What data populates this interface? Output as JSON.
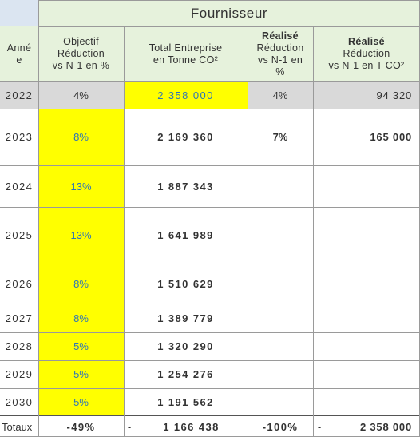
{
  "header": {
    "group_title": "Fournisseur",
    "col_year_line1": "Anné",
    "col_year_line2": "e",
    "col_objectif_line1": "Objectif",
    "col_objectif_line2": "Réduction",
    "col_objectif_line3": "vs N-1 en %",
    "col_total_line1": "Total Entreprise",
    "col_total_line2": "en Tonne CO²",
    "col_realise_pct_line1": "Réalisé",
    "col_realise_pct_line2": "Réduction",
    "col_realise_pct_line3": "vs N-1 en",
    "col_realise_pct_line4": "%",
    "col_realise_t_line1": "Réalisé",
    "col_realise_t_line2": "Réduction",
    "col_realise_t_line3": "vs N-1 en T CO²"
  },
  "rows": [
    {
      "year": "2022",
      "objectif": "4%",
      "total": "2 358 000",
      "realise_pct": "4%",
      "realise_t": "94 320"
    },
    {
      "year": "2023",
      "objectif": "8%",
      "total": "2 169 360",
      "realise_pct": "7%",
      "realise_t": "165 000"
    },
    {
      "year": "2024",
      "objectif": "13%",
      "total": "1 887 343",
      "realise_pct": "",
      "realise_t": ""
    },
    {
      "year": "2025",
      "objectif": "13%",
      "total": "1 641 989",
      "realise_pct": "",
      "realise_t": ""
    },
    {
      "year": "2026",
      "objectif": "8%",
      "total": "1 510 629",
      "realise_pct": "",
      "realise_t": ""
    },
    {
      "year": "2027",
      "objectif": "8%",
      "total": "1 389 779",
      "realise_pct": "",
      "realise_t": ""
    },
    {
      "year": "2028",
      "objectif": "5%",
      "total": "1 320 290",
      "realise_pct": "",
      "realise_t": ""
    },
    {
      "year": "2029",
      "objectif": "5%",
      "total": "1 254 276",
      "realise_pct": "",
      "realise_t": ""
    },
    {
      "year": "2030",
      "objectif": "5%",
      "total": "1 191 562",
      "realise_pct": "",
      "realise_t": ""
    }
  ],
  "totals": {
    "label": "Totaux",
    "objectif": "-49%",
    "total_dash": "-",
    "total": "1 166 438",
    "realise_pct": "-100%",
    "realise_t_dash": "-",
    "realise_t": "2 358 000"
  }
}
